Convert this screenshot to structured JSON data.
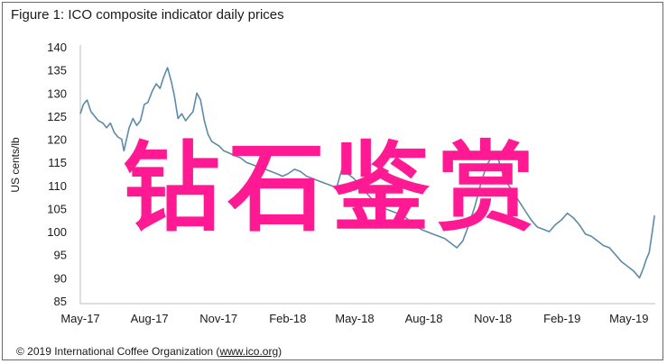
{
  "figure": {
    "title": "Figure 1: ICO composite indicator daily prices",
    "copyright_prefix": "© 2019 International Coffee Organization (",
    "copyright_link": "www.ico.org",
    "copyright_suffix": ")",
    "watermark_text": "钻石鉴赏"
  },
  "chart_data": {
    "type": "line",
    "title": "Figure 1: ICO composite indicator daily prices",
    "xlabel": "",
    "ylabel": "US cents/lb",
    "ylim": [
      85,
      140
    ],
    "yticks": [
      85,
      90,
      95,
      100,
      105,
      110,
      115,
      120,
      125,
      130,
      135,
      140
    ],
    "xlim": [
      "2017-05-01",
      "2019-06-05"
    ],
    "xticks": [
      {
        "label": "May-17",
        "date": "2017-05-01"
      },
      {
        "label": "Aug-17",
        "date": "2017-08-01"
      },
      {
        "label": "Nov-17",
        "date": "2017-11-01"
      },
      {
        "label": "Feb-18",
        "date": "2018-02-01"
      },
      {
        "label": "May-18",
        "date": "2018-05-01"
      },
      {
        "label": "Aug-18",
        "date": "2018-08-01"
      },
      {
        "label": "Nov-18",
        "date": "2018-11-01"
      },
      {
        "label": "Feb-19",
        "date": "2019-02-01"
      },
      {
        "label": "May-19",
        "date": "2019-05-01"
      }
    ],
    "grid": false,
    "legend": "none",
    "color": "#5d8aa8",
    "series": [
      {
        "points": [
          [
            "2017-05-01",
            125.5
          ],
          [
            "2017-05-05",
            127.5
          ],
          [
            "2017-05-10",
            128.5
          ],
          [
            "2017-05-15",
            126.0
          ],
          [
            "2017-05-20",
            125.0
          ],
          [
            "2017-05-25",
            124.0
          ],
          [
            "2017-05-31",
            123.5
          ],
          [
            "2017-06-05",
            122.5
          ],
          [
            "2017-06-10",
            123.5
          ],
          [
            "2017-06-15",
            121.5
          ],
          [
            "2017-06-20",
            120.5
          ],
          [
            "2017-06-25",
            120.0
          ],
          [
            "2017-06-28",
            117.5
          ],
          [
            "2017-07-05",
            122.5
          ],
          [
            "2017-07-10",
            124.5
          ],
          [
            "2017-07-15",
            123.0
          ],
          [
            "2017-07-20",
            124.0
          ],
          [
            "2017-07-25",
            127.5
          ],
          [
            "2017-07-30",
            128.0
          ],
          [
            "2017-08-05",
            130.5
          ],
          [
            "2017-08-10",
            132.0
          ],
          [
            "2017-08-15",
            131.0
          ],
          [
            "2017-08-20",
            133.5
          ],
          [
            "2017-08-25",
            135.5
          ],
          [
            "2017-08-30",
            132.5
          ],
          [
            "2017-09-03",
            129.5
          ],
          [
            "2017-09-08",
            124.5
          ],
          [
            "2017-09-13",
            125.5
          ],
          [
            "2017-09-18",
            124.0
          ],
          [
            "2017-09-23",
            125.0
          ],
          [
            "2017-09-28",
            126.0
          ],
          [
            "2017-10-03",
            130.0
          ],
          [
            "2017-10-08",
            128.5
          ],
          [
            "2017-10-13",
            124.0
          ],
          [
            "2017-10-18",
            121.0
          ],
          [
            "2017-10-23",
            119.5
          ],
          [
            "2017-10-28",
            119.0
          ],
          [
            "2017-11-02",
            118.5
          ],
          [
            "2017-11-08",
            117.5
          ],
          [
            "2017-11-15",
            117.0
          ],
          [
            "2017-11-22",
            116.5
          ],
          [
            "2017-11-30",
            116.0
          ],
          [
            "2017-12-08",
            115.0
          ],
          [
            "2017-12-16",
            114.5
          ],
          [
            "2017-12-24",
            114.0
          ],
          [
            "2018-01-02",
            113.5
          ],
          [
            "2018-01-10",
            113.0
          ],
          [
            "2018-01-18",
            112.5
          ],
          [
            "2018-01-25",
            112.0
          ],
          [
            "2018-02-01",
            112.5
          ],
          [
            "2018-02-10",
            113.5
          ],
          [
            "2018-02-18",
            113.0
          ],
          [
            "2018-02-26",
            112.0
          ],
          [
            "2018-03-06",
            111.5
          ],
          [
            "2018-03-14",
            111.0
          ],
          [
            "2018-03-22",
            110.5
          ],
          [
            "2018-03-30",
            110.0
          ],
          [
            "2018-04-07",
            109.5
          ],
          [
            "2018-04-14",
            113.5
          ],
          [
            "2018-04-22",
            112.5
          ],
          [
            "2018-04-30",
            111.5
          ],
          [
            "2018-05-08",
            110.0
          ],
          [
            "2018-05-16",
            108.5
          ],
          [
            "2018-05-24",
            107.0
          ],
          [
            "2018-06-01",
            106.0
          ],
          [
            "2018-06-10",
            105.0
          ],
          [
            "2018-06-18",
            104.5
          ],
          [
            "2018-06-26",
            104.0
          ],
          [
            "2018-07-04",
            103.5
          ],
          [
            "2018-07-12",
            102.5
          ],
          [
            "2018-07-20",
            101.5
          ],
          [
            "2018-07-28",
            100.5
          ],
          [
            "2018-08-05",
            100.0
          ],
          [
            "2018-08-13",
            99.5
          ],
          [
            "2018-08-21",
            99.0
          ],
          [
            "2018-08-29",
            98.5
          ],
          [
            "2018-09-06",
            97.5
          ],
          [
            "2018-09-14",
            96.5
          ],
          [
            "2018-09-22",
            98.0
          ],
          [
            "2018-09-30",
            101.5
          ],
          [
            "2018-10-08",
            105.5
          ],
          [
            "2018-10-16",
            110.5
          ],
          [
            "2018-10-24",
            114.5
          ],
          [
            "2018-11-01",
            116.5
          ],
          [
            "2018-11-06",
            117.0
          ],
          [
            "2018-11-12",
            113.5
          ],
          [
            "2018-11-20",
            110.5
          ],
          [
            "2018-11-28",
            108.5
          ],
          [
            "2018-12-06",
            106.5
          ],
          [
            "2018-12-14",
            104.5
          ],
          [
            "2018-12-22",
            102.5
          ],
          [
            "2018-12-30",
            101.0
          ],
          [
            "2019-01-07",
            100.5
          ],
          [
            "2019-01-15",
            100.0
          ],
          [
            "2019-01-23",
            101.5
          ],
          [
            "2019-01-31",
            102.5
          ],
          [
            "2019-02-08",
            104.0
          ],
          [
            "2019-02-16",
            103.0
          ],
          [
            "2019-02-24",
            101.5
          ],
          [
            "2019-03-04",
            99.5
          ],
          [
            "2019-03-12",
            99.0
          ],
          [
            "2019-03-20",
            98.0
          ],
          [
            "2019-03-28",
            97.0
          ],
          [
            "2019-04-05",
            96.5
          ],
          [
            "2019-04-13",
            95.0
          ],
          [
            "2019-04-21",
            93.5
          ],
          [
            "2019-04-29",
            92.5
          ],
          [
            "2019-05-07",
            91.5
          ],
          [
            "2019-05-15",
            90.0
          ],
          [
            "2019-05-20",
            92.0
          ],
          [
            "2019-05-24",
            94.0
          ],
          [
            "2019-05-28",
            95.5
          ],
          [
            "2019-06-01",
            100.0
          ],
          [
            "2019-06-04",
            103.5
          ]
        ]
      }
    ]
  }
}
